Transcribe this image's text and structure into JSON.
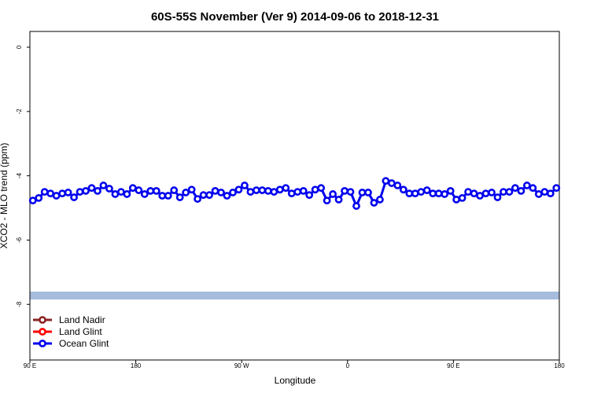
{
  "chart_data": {
    "type": "line",
    "title": "60S-55S November (Ver 9)   2014-09-06 to 2018-12-31",
    "x_label": "Longitude",
    "y_label": "XCO2 - MLO trend (ppm)",
    "xlim": [
      90,
      540
    ],
    "ylim": [
      -9.73,
      0.49
    ],
    "xticks": [
      {
        "value": 90,
        "label": "90 E"
      },
      180,
      {
        "value": 270,
        "label": "90 W"
      },
      {
        "value": 360,
        "label": "0"
      },
      {
        "value": 450,
        "label": "90 E"
      },
      {
        "value": 540,
        "label": "180"
      }
    ],
    "yticks": [
      0,
      -2,
      -4,
      -6,
      -8
    ],
    "legend": "bottom-left",
    "x": [
      92.5,
      97.5,
      102.5,
      107.5,
      112.5,
      117.5,
      122.5,
      127.5,
      132.5,
      137.5,
      142.5,
      147.5,
      152.5,
      157.5,
      162.5,
      167.5,
      172.5,
      177.5,
      182.5,
      187.5,
      192.5,
      197.5,
      202.5,
      207.5,
      212.5,
      217.5,
      222.5,
      227.5,
      232.5,
      237.5,
      242.5,
      247.5,
      252.5,
      257.5,
      262.5,
      267.5,
      272.5,
      277.5,
      282.5,
      287.5,
      292.5,
      297.5,
      302.5,
      307.5,
      312.5,
      317.5,
      322.5,
      327.5,
      332.5,
      337.5,
      342.5,
      347.5,
      352.5,
      357.5,
      362.5,
      367.5,
      372.5,
      377.5,
      382.5,
      387.5,
      392.5,
      397.5,
      402.5,
      407.5,
      412.5,
      417.5,
      422.5,
      427.5,
      432.5,
      437.5,
      442.5,
      447.5,
      452.5,
      457.5,
      462.5,
      467.5,
      472.5,
      477.5,
      482.5,
      487.5,
      492.5,
      497.5,
      502.5,
      507.5,
      512.5,
      517.5,
      522.5,
      527.5,
      532.5,
      537.5
    ],
    "series": [
      {
        "name": "Land Nadir",
        "color": "#8b2323",
        "values": [
          null,
          null,
          null,
          null,
          null,
          null,
          null,
          null,
          null,
          null,
          null,
          null,
          null,
          null,
          null,
          null,
          null,
          null,
          null,
          null,
          null,
          null,
          null,
          null,
          null,
          null,
          null,
          null,
          null,
          null,
          null,
          null,
          null,
          null,
          null,
          null,
          null,
          null,
          null,
          null,
          null,
          null,
          null,
          null,
          null,
          null,
          null,
          null,
          null,
          null,
          null,
          null,
          null,
          null,
          null,
          null,
          null,
          null,
          null,
          null,
          null,
          null,
          null,
          null,
          null,
          null,
          null,
          null,
          null,
          null,
          null,
          null,
          null,
          null,
          null,
          null,
          null,
          null,
          null,
          null,
          null,
          null,
          null,
          null,
          null,
          null,
          null,
          null,
          null,
          null
        ]
      },
      {
        "name": "Land Glint",
        "color": "#ff0000",
        "values": [
          null,
          null,
          null,
          null,
          null,
          null,
          null,
          null,
          null,
          null,
          null,
          null,
          null,
          null,
          null,
          null,
          null,
          null,
          null,
          null,
          null,
          null,
          null,
          null,
          null,
          null,
          null,
          null,
          null,
          null,
          null,
          null,
          null,
          null,
          null,
          null,
          null,
          null,
          null,
          null,
          null,
          null,
          null,
          null,
          null,
          null,
          null,
          null,
          null,
          null,
          null,
          null,
          null,
          null,
          null,
          null,
          null,
          null,
          null,
          null,
          null,
          null,
          null,
          null,
          null,
          null,
          null,
          null,
          null,
          null,
          null,
          null,
          null,
          null,
          null,
          null,
          null,
          null,
          null,
          null,
          null,
          null,
          null,
          null,
          null,
          null,
          null,
          null,
          null,
          null
        ]
      },
      {
        "name": "Ocean Glint",
        "color": "#0000ee",
        "values": [
          -4.77,
          -4.69,
          -4.5,
          -4.55,
          -4.62,
          -4.55,
          -4.52,
          -4.67,
          -4.5,
          -4.47,
          -4.38,
          -4.47,
          -4.3,
          -4.4,
          -4.57,
          -4.5,
          -4.57,
          -4.38,
          -4.45,
          -4.57,
          -4.47,
          -4.47,
          -4.62,
          -4.62,
          -4.45,
          -4.67,
          -4.52,
          -4.43,
          -4.72,
          -4.6,
          -4.6,
          -4.47,
          -4.52,
          -4.62,
          -4.52,
          -4.43,
          -4.3,
          -4.5,
          -4.45,
          -4.45,
          -4.47,
          -4.5,
          -4.43,
          -4.38,
          -4.55,
          -4.5,
          -4.47,
          -4.6,
          -4.43,
          -4.38,
          -4.77,
          -4.57,
          -4.74,
          -4.47,
          -4.5,
          -4.94,
          -4.52,
          -4.52,
          -4.84,
          -4.74,
          -4.16,
          -4.23,
          -4.3,
          -4.43,
          -4.55,
          -4.55,
          -4.5,
          -4.45,
          -4.55,
          -4.55,
          -4.57,
          -4.47,
          -4.74,
          -4.69,
          -4.5,
          -4.55,
          -4.62,
          -4.55,
          -4.52,
          -4.67,
          -4.5,
          -4.5,
          -4.38,
          -4.47,
          -4.3,
          -4.38,
          -4.57,
          -4.5,
          -4.55,
          -4.38
        ]
      }
    ]
  }
}
